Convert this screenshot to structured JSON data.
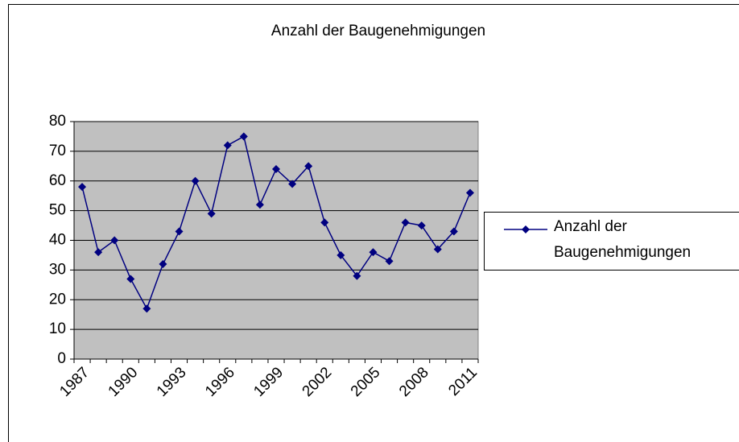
{
  "chart_data": {
    "type": "line",
    "title": "Anzahl der Baugenehmigungen",
    "categories": [
      "1987",
      null,
      null,
      "1990",
      null,
      null,
      "1993",
      null,
      null,
      "1996",
      null,
      null,
      "1999",
      null,
      null,
      "2002",
      null,
      null,
      "2005",
      null,
      null,
      "2008",
      null,
      null,
      "2011"
    ],
    "series": [
      {
        "name": "Anzahl der Baugenehmigungen",
        "color": "#000080",
        "values": [
          58,
          36,
          40,
          27,
          17,
          32,
          43,
          60,
          49,
          72,
          75,
          52,
          64,
          59,
          65,
          46,
          35,
          28,
          36,
          33,
          46,
          45,
          37,
          43,
          56
        ]
      }
    ],
    "ylim": [
      0,
      80
    ],
    "yticks": [
      0,
      10,
      20,
      30,
      40,
      50,
      60,
      70,
      80
    ],
    "grid": true,
    "legend": "right"
  }
}
